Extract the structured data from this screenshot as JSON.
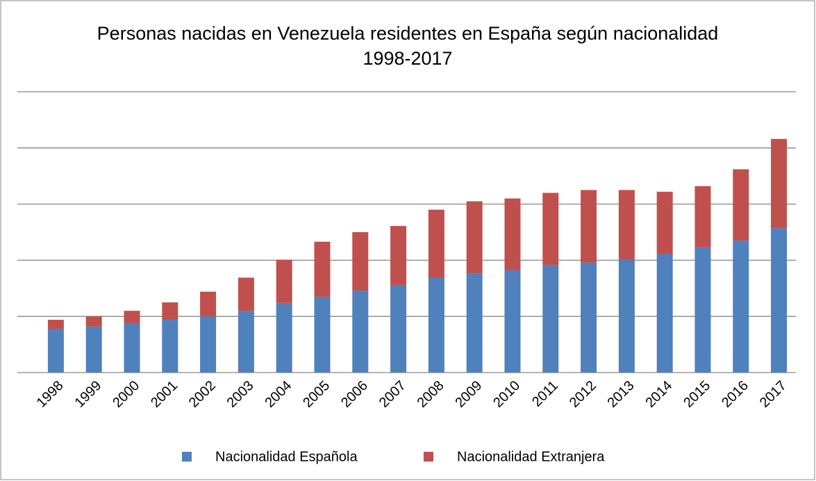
{
  "chart_data": {
    "type": "stacked_bar",
    "title": "Personas nacidas en Venezuela residentes en España según nacionalidad 1998-2017",
    "categories": [
      "1998",
      "1999",
      "2000",
      "2001",
      "2002",
      "2003",
      "2004",
      "2005",
      "2006",
      "2007",
      "2008",
      "2009",
      "2010",
      "2011",
      "2012",
      "2013",
      "2014",
      "2015",
      "2016",
      "2017"
    ],
    "series": [
      {
        "name": "Nacionalidad Española",
        "color": "#4f81bd",
        "values": [
          0.78,
          0.82,
          0.88,
          0.94,
          1.0,
          1.1,
          1.24,
          1.35,
          1.46,
          1.56,
          1.69,
          1.76,
          1.82,
          1.91,
          1.96,
          2.01,
          2.11,
          2.23,
          2.35,
          2.57
        ]
      },
      {
        "name": "Nacionalidad Extranjera",
        "color": "#c0504d",
        "values": [
          0.16,
          0.18,
          0.22,
          0.31,
          0.44,
          0.59,
          0.77,
          0.98,
          1.04,
          1.05,
          1.21,
          1.29,
          1.28,
          1.29,
          1.29,
          1.24,
          1.11,
          1.09,
          1.27,
          1.59
        ]
      }
    ],
    "ylim": [
      0,
      5
    ],
    "yticks": [
      0,
      1,
      2,
      3,
      4,
      5
    ],
    "grid": true,
    "legend": "bottom"
  }
}
